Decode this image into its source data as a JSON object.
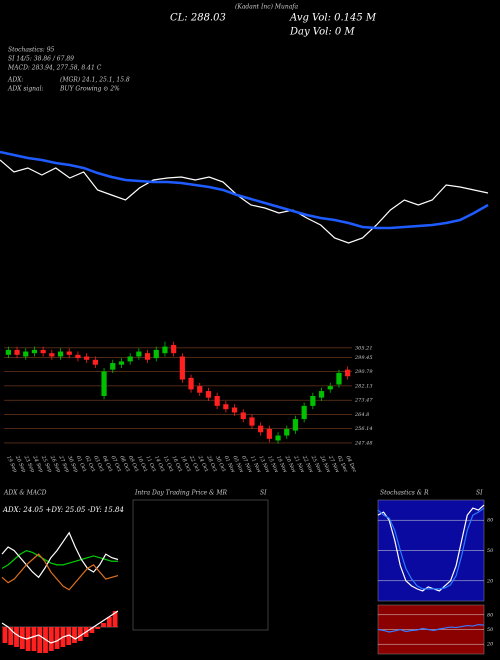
{
  "header": {
    "close": "CL: 288.03",
    "avg_vol": "Avg Vol: 0.145 M",
    "day_vol": "Day Vol: 0 M",
    "stochastics": "Stochastics: 95",
    "si": "SI 14/5: 38.86 / 67.89",
    "macd": "MACD: 283.94, 277.58, 8.41 C",
    "adx": "ADX:",
    "adx_values": "(MGR) 24.1, 25.1, 15.8",
    "adx_signal": "ADX signal:",
    "signal": "BUY Growing ⊙ 2%",
    "company": "(Kadant Inc) Munafa"
  },
  "chart_data": [
    {
      "type": "line",
      "ylim": [
        0,
        100
      ],
      "series": [
        {
          "color": "#ffffff",
          "values": [
            85,
            73,
            77,
            70,
            77,
            67,
            73,
            55,
            50,
            45,
            57,
            65,
            67,
            68,
            65,
            68,
            63,
            50,
            40,
            37,
            32,
            35,
            27,
            20,
            7,
            2,
            7,
            20,
            35,
            45,
            40,
            45,
            60,
            58,
            55,
            52
          ]
        },
        {
          "color": "#1f5cff",
          "values": [
            93,
            90,
            87,
            85,
            82,
            80,
            77,
            72,
            68,
            65,
            64,
            63,
            63,
            62,
            60,
            58,
            55,
            50,
            46,
            42,
            38,
            34,
            30,
            27,
            25,
            22,
            18,
            17,
            17,
            18,
            19,
            20,
            22,
            25,
            32,
            40
          ]
        }
      ]
    },
    {
      "type": "candlestick",
      "up_color": "#00c000",
      "down_color": "#ff2020",
      "grid": true,
      "grid_color": "#a0522d",
      "categories": [
        "19 Sep",
        "20 Sep",
        "23 Sep",
        "24 Sep",
        "25 Sep",
        "26 Sep",
        "27 Sep",
        "30 Sep",
        "01 Oct",
        "02 Oct",
        "03 Oct",
        "04 Oct",
        "07 Oct",
        "08 Oct",
        "09 Oct",
        "10 Oct",
        "11 Oct",
        "14 Oct",
        "15 Oct",
        "16 Oct",
        "18 Oct",
        "22 Oct",
        "24 Oct",
        "28 Oct",
        "30 Oct",
        "01 Nov",
        "05 Nov",
        "07 Nov",
        "11 Nov",
        "13 Nov",
        "15 Nov",
        "19 Nov",
        "20 Nov",
        "21 Nov",
        "22 Nov",
        "25 Nov",
        "26 Nov",
        "27 Nov",
        "02 Dec",
        "04 Dec"
      ],
      "open": [
        301,
        304,
        300,
        302,
        304,
        302,
        300,
        303,
        301,
        300,
        298,
        276,
        292,
        295,
        297,
        300,
        302,
        299,
        302,
        307,
        300,
        287,
        282,
        279,
        276,
        271,
        269,
        266,
        263,
        258,
        256,
        249,
        252,
        255,
        262,
        270,
        275,
        280,
        283,
        292
      ],
      "high": [
        306,
        306,
        305,
        306,
        306,
        304,
        305,
        305,
        303,
        302,
        300,
        293,
        298,
        299,
        302,
        305,
        304,
        306,
        309,
        309,
        302,
        289,
        284,
        281,
        278,
        273,
        271,
        268,
        265,
        260,
        258,
        254,
        258,
        264,
        272,
        278,
        281,
        284,
        292,
        294
      ],
      "low": [
        299,
        299,
        298,
        300,
        300,
        298,
        298,
        299,
        297,
        296,
        293,
        274,
        290,
        293,
        295,
        298,
        296,
        297,
        300,
        300,
        284,
        278,
        276,
        273,
        268,
        266,
        264,
        260,
        256,
        252,
        248,
        247,
        250,
        253,
        260,
        268,
        273,
        278,
        281,
        286
      ],
      "close": [
        304,
        301,
        303,
        304,
        302,
        300,
        303,
        301,
        299,
        298,
        295,
        291,
        296,
        297,
        300,
        303,
        298,
        304,
        306,
        302,
        286,
        280,
        278,
        275,
        270,
        268,
        266,
        262,
        258,
        254,
        250,
        252,
        256,
        262,
        270,
        276,
        279,
        282,
        290,
        288
      ],
      "ylim": [
        242,
        310
      ],
      "yticks": [
        305.21,
        299.45,
        290.79,
        282.13,
        273.47,
        264.8,
        256.14,
        247.48
      ]
    },
    {
      "type": "line",
      "title": "ADX & MACD",
      "annotation": "ADX: 24.05 +DY: 25.05 -DY: 15.84",
      "ylim": [
        0,
        50
      ],
      "series": [
        {
          "color": "#00d000",
          "values": [
            20,
            22,
            25,
            28,
            30,
            29,
            27,
            25,
            23,
            22,
            22,
            23,
            24,
            25,
            26,
            27,
            26,
            25,
            24,
            24
          ]
        },
        {
          "color": "#ffffff",
          "values": [
            28,
            32,
            30,
            26,
            22,
            18,
            15,
            20,
            26,
            30,
            35,
            40,
            32,
            25,
            20,
            18,
            22,
            28,
            26,
            25
          ]
        },
        {
          "color": "#e07020",
          "values": [
            15,
            12,
            14,
            18,
            22,
            25,
            28,
            24,
            18,
            14,
            10,
            8,
            12,
            16,
            20,
            22,
            18,
            14,
            15,
            16
          ]
        }
      ]
    },
    {
      "type": "bar",
      "color": "#ff2020",
      "ylim": [
        -15,
        10
      ],
      "values": [
        -8,
        -9,
        -10,
        -11,
        -12,
        -12,
        -13,
        -13,
        -12,
        -11,
        -10,
        -9,
        -8,
        -7,
        -5,
        -3,
        -1,
        2,
        5,
        8
      ],
      "series": [
        {
          "color": "#ffffff",
          "values": [
            2,
            0,
            -3,
            -5,
            -6,
            -5,
            -4,
            -6,
            -8,
            -7,
            -5,
            -4,
            -6,
            -4,
            -2,
            0,
            2,
            4,
            6,
            8
          ]
        }
      ]
    },
    {
      "type": "line",
      "title": "Intra Day Trading Price & MR",
      "subtitle": "SI",
      "series": []
    },
    {
      "type": "line",
      "title": "Stochastics & R",
      "subtitle": "SI",
      "background": "#0a0aa0",
      "ylim": [
        0,
        100
      ],
      "yticks": [
        20,
        50,
        80
      ],
      "series": [
        {
          "color": "#ffffff",
          "values": [
            85,
            88,
            80,
            60,
            35,
            20,
            15,
            12,
            10,
            14,
            12,
            10,
            15,
            20,
            35,
            60,
            85,
            92,
            90,
            95
          ]
        },
        {
          "color": "#2a7bff",
          "values": [
            90,
            85,
            82,
            70,
            50,
            32,
            22,
            15,
            12,
            12,
            12,
            12,
            13,
            16,
            25,
            45,
            70,
            85,
            88,
            92
          ]
        }
      ]
    },
    {
      "type": "line",
      "background": "#8b0000",
      "ylim": [
        0,
        100
      ],
      "yticks": [
        20,
        50,
        80
      ],
      "series": [
        {
          "color": "#3a7bff",
          "values": [
            50,
            48,
            45,
            47,
            50,
            46,
            48,
            49,
            52,
            50,
            48,
            51,
            53,
            55,
            54,
            56,
            58,
            57,
            60,
            59
          ]
        }
      ]
    }
  ]
}
